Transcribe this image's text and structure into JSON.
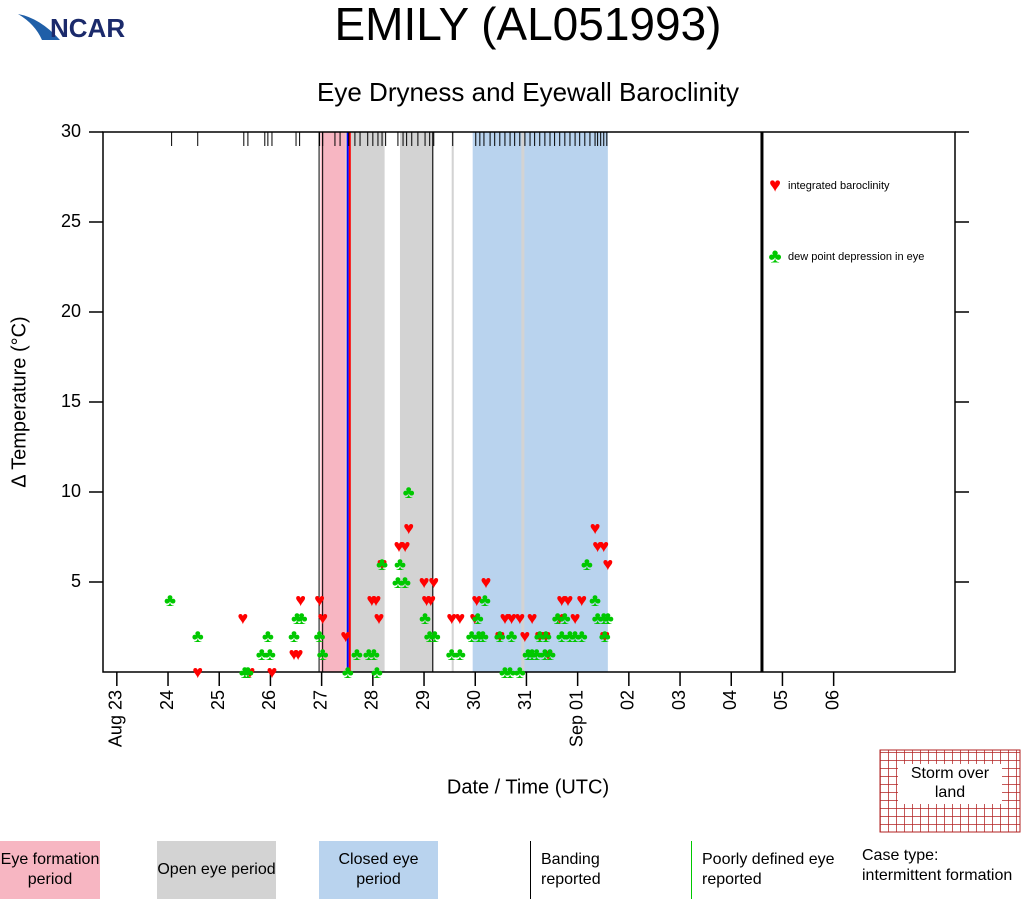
{
  "logo": "NCAR",
  "chart_data": {
    "type": "scatter",
    "title": "EMILY (AL051993)",
    "subtitle": "Eye Dryness and Eyewall Baroclinity",
    "y_label": "Δ Temperature (°C)",
    "x_label": "Date / Time (UTC)",
    "xlim": [
      -0.27,
      16.37
    ],
    "ylim": [
      0,
      30
    ],
    "yticks": [
      5,
      10,
      15,
      20,
      25,
      30
    ],
    "xticks": [
      {
        "value": 0,
        "label": "Aug 23"
      },
      {
        "value": 1,
        "label": "24"
      },
      {
        "value": 2,
        "label": "25"
      },
      {
        "value": 3,
        "label": "26"
      },
      {
        "value": 4,
        "label": "27"
      },
      {
        "value": 5,
        "label": "28"
      },
      {
        "value": 6,
        "label": "29"
      },
      {
        "value": 7,
        "label": "30"
      },
      {
        "value": 8,
        "label": "31"
      },
      {
        "value": 9,
        "label": "Sep 01"
      },
      {
        "value": 10,
        "label": "02"
      },
      {
        "value": 11,
        "label": "03"
      },
      {
        "value": 12,
        "label": "04"
      },
      {
        "value": 13,
        "label": "05"
      },
      {
        "value": 14,
        "label": "06"
      }
    ],
    "series": [
      {
        "name": "integrated baroclinity",
        "color": "#ff0000",
        "symbol": "♥",
        "x": [
          1.58,
          2.46,
          2.6,
          3.03,
          3.46,
          3.54,
          3.59,
          3.96,
          4.02,
          4.47,
          4.98,
          5.06,
          5.12,
          5.18,
          5.51,
          5.63,
          5.7,
          6.0,
          6.05,
          6.13,
          6.19,
          6.54,
          6.7,
          6.99,
          7.03,
          7.21,
          7.48,
          7.58,
          7.71,
          7.87,
          7.97,
          8.11,
          8.26,
          8.38,
          8.42,
          8.65,
          8.69,
          8.81,
          8.95,
          9.08,
          9.34,
          9.39,
          9.51,
          9.53,
          9.59
        ],
        "values": [
          0,
          3,
          0,
          0,
          1,
          1,
          4,
          4,
          3,
          2,
          4,
          4,
          3,
          6,
          7,
          7,
          8,
          5,
          4,
          4,
          5,
          3,
          3,
          3,
          4,
          5,
          2,
          3,
          3,
          3,
          2,
          3,
          2,
          2,
          1,
          3,
          4,
          4,
          3,
          4,
          8,
          7,
          7,
          2,
          6
        ]
      },
      {
        "name": "dew point depression in eye",
        "color": "#00c800",
        "symbol": "♣",
        "x": [
          1.04,
          1.58,
          2.5,
          2.56,
          2.83,
          2.95,
          2.99,
          3.46,
          3.52,
          3.61,
          3.96,
          4.02,
          4.51,
          4.69,
          4.92,
          5.02,
          5.08,
          5.18,
          5.49,
          5.53,
          5.63,
          5.7,
          6.02,
          6.11,
          6.21,
          6.54,
          6.7,
          6.93,
          7.05,
          7.07,
          7.15,
          7.19,
          7.48,
          7.58,
          7.68,
          7.71,
          7.87,
          8.03,
          8.11,
          8.2,
          8.26,
          8.36,
          8.38,
          8.46,
          8.61,
          8.69,
          8.75,
          8.85,
          8.95,
          9.08,
          9.18,
          9.34,
          9.39,
          9.51,
          9.53,
          9.59
        ],
        "values": [
          4,
          2,
          0,
          0,
          1,
          2,
          1,
          2,
          3,
          3,
          2,
          1,
          0,
          1,
          1,
          1,
          0,
          6,
          5,
          6,
          5,
          10,
          3,
          2,
          2,
          1,
          1,
          2,
          3,
          2,
          2,
          4,
          2,
          0,
          0,
          2,
          0,
          1,
          1,
          1,
          2,
          1,
          2,
          1,
          3,
          2,
          3,
          2,
          2,
          2,
          6,
          4,
          3,
          3,
          2,
          3
        ]
      }
    ],
    "obs_times": [
      1.07,
      1.58,
      2.48,
      2.56,
      2.89,
      2.95,
      3.03,
      3.5,
      3.57,
      3.96,
      4.02,
      4.26,
      4.36,
      4.53,
      4.65,
      4.75,
      4.9,
      5.0,
      5.1,
      5.18,
      5.25,
      5.49,
      5.59,
      5.66,
      5.76,
      5.88,
      6.02,
      6.11,
      6.19,
      6.56,
      7.01,
      7.09,
      7.17,
      7.29,
      7.38,
      7.48,
      7.58,
      7.68,
      7.77,
      7.87,
      7.97,
      8.07,
      8.16,
      8.26,
      8.36,
      8.46,
      8.55,
      8.65,
      8.75,
      8.85,
      8.95,
      9.04,
      9.14,
      9.24,
      9.34,
      9.39,
      9.45,
      9.51,
      9.57
    ],
    "markers": [
      {
        "x": 4.51,
        "color": "#0000ff"
      },
      {
        "x": 4.55,
        "color": "#ff0000"
      },
      {
        "x": 12.6,
        "color": "#000000"
      }
    ],
    "periods": [
      {
        "name": "Eye formation period",
        "color": "#f7b6c2",
        "spans": [
          [
            3.98,
            4.47
          ]
        ]
      },
      {
        "name": "Open eye period",
        "color": "#d3d3d3",
        "spans": [
          [
            4.47,
            5.23
          ],
          [
            5.53,
            6.19
          ],
          [
            6.54,
            6.58
          ],
          [
            7.9,
            7.96
          ]
        ]
      },
      {
        "name": "Closed eye period",
        "color": "#b9d3ee",
        "spans": [
          [
            6.95,
            9.59
          ]
        ]
      }
    ],
    "events": [
      {
        "name": "Banding reported",
        "color": "#000000",
        "x": [
          3.95,
          4.02,
          6.17
        ]
      },
      {
        "name": "Poorly defined eye reported",
        "color": "#00c800",
        "x": []
      }
    ],
    "land_label": "Storm over land",
    "case_type": [
      "Case type:",
      "intermittent formation"
    ]
  }
}
